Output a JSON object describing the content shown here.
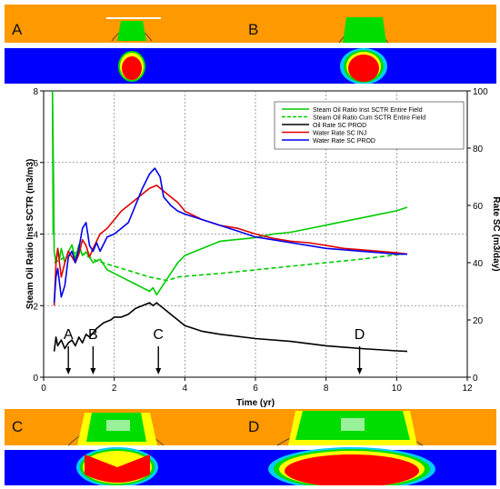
{
  "panels": [
    {
      "id": "A",
      "label": "A"
    },
    {
      "id": "B",
      "label": "B"
    },
    {
      "id": "C",
      "label": "C"
    },
    {
      "id": "D",
      "label": "D"
    }
  ],
  "colors": {
    "orange": "#FF9900",
    "blue": "#0000FF",
    "red": "#FF0000",
    "yellow": "#FFFF00",
    "green": "#00DD00",
    "cyan": "#00CCFF"
  },
  "chart_data": {
    "type": "line",
    "xlabel": "Time (yr)",
    "ylabel_left": "Steam Oil Ratio Inst SCTR (m3/m3)",
    "ylabel_right": "Rate SC (m3/day)",
    "xlim": [
      0,
      12
    ],
    "ylim_left": [
      0,
      8
    ],
    "ylim_right": [
      0,
      100
    ],
    "x_ticks": [
      "0",
      "2",
      "4",
      "6",
      "8",
      "10",
      "12"
    ],
    "y_left_ticks": [
      "0",
      "2",
      "4",
      "6",
      "8"
    ],
    "y_right_ticks": [
      "0",
      "20",
      "40",
      "60",
      "80",
      "100"
    ],
    "grid": true,
    "legend_position": "top-right",
    "series": [
      {
        "name": "Steam Oil Ratio Inst SCTR Entire  Field",
        "axis": "left",
        "color": "#00CC00",
        "dash": "solid",
        "points": [
          [
            0.25,
            8
          ],
          [
            0.28,
            5.5
          ],
          [
            0.3,
            3.5
          ],
          [
            0.35,
            3.2
          ],
          [
            0.4,
            3.6
          ],
          [
            0.45,
            3.3
          ],
          [
            0.5,
            3.6
          ],
          [
            0.6,
            3.2
          ],
          [
            0.7,
            3.5
          ],
          [
            0.8,
            3.7
          ],
          [
            0.9,
            3.3
          ],
          [
            1.0,
            3.7
          ],
          [
            1.1,
            3.4
          ],
          [
            1.2,
            3.5
          ],
          [
            1.4,
            3.2
          ],
          [
            1.6,
            3.3
          ],
          [
            1.8,
            3.0
          ],
          [
            2.0,
            2.9
          ],
          [
            2.2,
            2.8
          ],
          [
            2.4,
            2.7
          ],
          [
            2.6,
            2.6
          ],
          [
            2.8,
            2.5
          ],
          [
            3.0,
            2.4
          ],
          [
            3.1,
            2.5
          ],
          [
            3.2,
            2.3
          ],
          [
            3.4,
            2.6
          ],
          [
            3.6,
            2.9
          ],
          [
            3.8,
            3.2
          ],
          [
            4.0,
            3.4
          ],
          [
            4.5,
            3.6
          ],
          [
            5.0,
            3.8
          ],
          [
            5.5,
            3.85
          ],
          [
            6.0,
            3.9
          ],
          [
            6.5,
            4.0
          ],
          [
            7.0,
            4.05
          ],
          [
            7.5,
            4.15
          ],
          [
            8.0,
            4.25
          ],
          [
            8.5,
            4.35
          ],
          [
            9.0,
            4.45
          ],
          [
            9.5,
            4.55
          ],
          [
            10.0,
            4.65
          ],
          [
            10.3,
            4.75
          ]
        ]
      },
      {
        "name": "Steam Oil Ratio Cum SCTR Entire  Field",
        "axis": "left",
        "color": "#00CC00",
        "dash": "dashed",
        "points": [
          [
            0.3,
            3.2
          ],
          [
            0.5,
            3.3
          ],
          [
            0.8,
            3.45
          ],
          [
            1.0,
            3.5
          ],
          [
            1.5,
            3.25
          ],
          [
            2.0,
            3.1
          ],
          [
            2.5,
            2.95
          ],
          [
            3.0,
            2.8
          ],
          [
            3.5,
            2.7
          ],
          [
            3.8,
            2.8
          ],
          [
            4.0,
            2.82
          ],
          [
            5.0,
            2.9
          ],
          [
            6.0,
            3.0
          ],
          [
            7.0,
            3.1
          ],
          [
            8.0,
            3.2
          ],
          [
            9.0,
            3.3
          ],
          [
            10.0,
            3.42
          ],
          [
            10.3,
            3.45
          ]
        ]
      },
      {
        "name": "Oil Rate SC PROD",
        "axis": "right",
        "color": "#000000",
        "dash": "solid",
        "points": [
          [
            0.3,
            9
          ],
          [
            0.35,
            14
          ],
          [
            0.4,
            11
          ],
          [
            0.5,
            13
          ],
          [
            0.6,
            10
          ],
          [
            0.7,
            12
          ],
          [
            0.8,
            13
          ],
          [
            0.9,
            11
          ],
          [
            1.0,
            14
          ],
          [
            1.1,
            12
          ],
          [
            1.2,
            15
          ],
          [
            1.3,
            14
          ],
          [
            1.5,
            17
          ],
          [
            1.7,
            19
          ],
          [
            1.9,
            20
          ],
          [
            2.0,
            21
          ],
          [
            2.2,
            21
          ],
          [
            2.4,
            22
          ],
          [
            2.6,
            24
          ],
          [
            2.8,
            25
          ],
          [
            3.0,
            26
          ],
          [
            3.1,
            25
          ],
          [
            3.2,
            26
          ],
          [
            3.3,
            25
          ],
          [
            3.4,
            24
          ],
          [
            3.6,
            22
          ],
          [
            3.8,
            20
          ],
          [
            4.0,
            18
          ],
          [
            4.5,
            16
          ],
          [
            5.0,
            15
          ],
          [
            6.0,
            13.5
          ],
          [
            7.0,
            12.5
          ],
          [
            8.0,
            11
          ],
          [
            9.0,
            10
          ],
          [
            10.0,
            9.2
          ],
          [
            10.3,
            9
          ]
        ]
      },
      {
        "name": "Water Rate SC INJ",
        "axis": "right",
        "color": "#E00000",
        "dash": "solid",
        "points": [
          [
            0.3,
            25
          ],
          [
            0.35,
            40
          ],
          [
            0.4,
            45
          ],
          [
            0.5,
            35
          ],
          [
            0.6,
            40
          ],
          [
            0.7,
            44
          ],
          [
            0.8,
            42
          ],
          [
            0.9,
            40
          ],
          [
            1.0,
            43
          ],
          [
            1.1,
            48
          ],
          [
            1.2,
            46
          ],
          [
            1.3,
            42
          ],
          [
            1.4,
            45
          ],
          [
            1.6,
            50
          ],
          [
            1.8,
            52
          ],
          [
            2.0,
            55
          ],
          [
            2.2,
            58
          ],
          [
            2.4,
            60
          ],
          [
            2.6,
            62
          ],
          [
            2.8,
            64
          ],
          [
            3.0,
            66
          ],
          [
            3.2,
            67
          ],
          [
            3.4,
            65
          ],
          [
            3.6,
            63
          ],
          [
            3.8,
            61
          ],
          [
            4.0,
            58
          ],
          [
            4.5,
            55
          ],
          [
            5.0,
            53
          ],
          [
            5.5,
            52
          ],
          [
            6.0,
            50
          ],
          [
            6.5,
            48.5
          ],
          [
            7.0,
            47.5
          ],
          [
            7.5,
            47
          ],
          [
            8.0,
            46
          ],
          [
            8.5,
            45
          ],
          [
            9.0,
            44.5
          ],
          [
            9.5,
            44
          ],
          [
            10.0,
            43.5
          ],
          [
            10.3,
            43
          ]
        ]
      },
      {
        "name": "Water Rate SC PROD",
        "axis": "right",
        "color": "#0000EE",
        "dash": "solid",
        "points": [
          [
            0.3,
            26
          ],
          [
            0.35,
            35
          ],
          [
            0.4,
            38
          ],
          [
            0.5,
            28
          ],
          [
            0.6,
            32
          ],
          [
            0.7,
            42
          ],
          [
            0.8,
            44
          ],
          [
            0.9,
            40
          ],
          [
            1.0,
            45
          ],
          [
            1.1,
            52
          ],
          [
            1.2,
            54
          ],
          [
            1.3,
            46
          ],
          [
            1.4,
            44
          ],
          [
            1.5,
            47
          ],
          [
            1.6,
            44
          ],
          [
            1.8,
            49
          ],
          [
            2.0,
            50
          ],
          [
            2.2,
            52
          ],
          [
            2.4,
            54
          ],
          [
            2.6,
            60
          ],
          [
            2.8,
            66
          ],
          [
            3.0,
            71
          ],
          [
            3.15,
            73
          ],
          [
            3.3,
            70
          ],
          [
            3.4,
            63
          ],
          [
            3.6,
            60
          ],
          [
            3.8,
            58
          ],
          [
            4.0,
            57
          ],
          [
            4.5,
            55
          ],
          [
            5.0,
            53
          ],
          [
            5.5,
            51
          ],
          [
            6.0,
            49
          ],
          [
            6.5,
            48
          ],
          [
            7.0,
            47
          ],
          [
            7.5,
            46
          ],
          [
            8.0,
            45
          ],
          [
            8.5,
            44.5
          ],
          [
            9.0,
            44
          ],
          [
            9.5,
            43.5
          ],
          [
            10.0,
            43
          ],
          [
            10.3,
            43
          ]
        ]
      }
    ],
    "annotations": [
      {
        "label": "A",
        "x": 0.7
      },
      {
        "label": "B",
        "x": 1.4
      },
      {
        "label": "C",
        "x": 3.25
      },
      {
        "label": "D",
        "x": 8.95
      }
    ]
  }
}
